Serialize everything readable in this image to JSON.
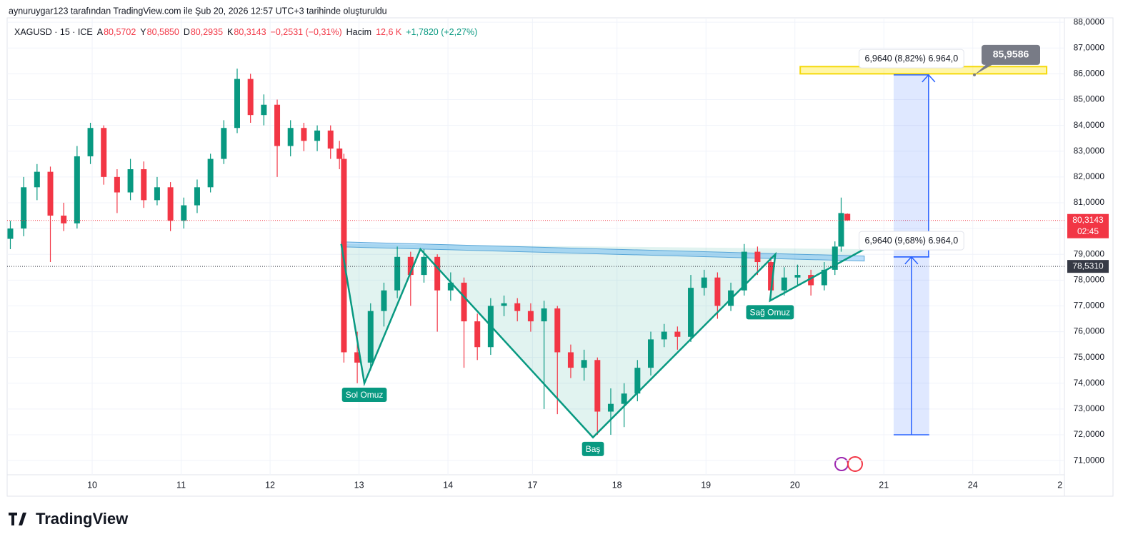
{
  "header": {
    "caption": "aynuruygar123 tarafından TradingView.com ile Şub 20, 2026 12:57 UTC+3 tarihinde oluşturuldu",
    "legend": [
      {
        "text": "XAGUSD · 15 · ICE",
        "color": "#131722"
      },
      {
        "text": "A",
        "color": "#131722"
      },
      {
        "text": "80,5702",
        "color": "#f23645"
      },
      {
        "text": "Y",
        "color": "#131722"
      },
      {
        "text": "80,5850",
        "color": "#f23645"
      },
      {
        "text": "D",
        "color": "#131722"
      },
      {
        "text": "80,2935",
        "color": "#f23645"
      },
      {
        "text": "K",
        "color": "#131722"
      },
      {
        "text": "80,3143",
        "color": "#f23645"
      },
      {
        "text": "−0,2531 (−0,31%)",
        "color": "#f23645"
      },
      {
        "text": "Hacim",
        "color": "#131722"
      },
      {
        "text": "12,6 K",
        "color": "#f23645"
      },
      {
        "text": "+1,7820 (+2,27%)",
        "color": "#089981"
      }
    ]
  },
  "chart_data": {
    "type": "candlestick",
    "up_color": "#089981",
    "down_color": "#f23645",
    "xlim": [
      -0.956,
      10.93
    ],
    "ylim": [
      69.62,
      88.17
    ],
    "xticks": [
      {
        "value": 0,
        "label": "10"
      },
      {
        "value": 1,
        "label": "11"
      },
      {
        "value": 2,
        "label": "12"
      },
      {
        "value": 3,
        "label": "13"
      },
      {
        "value": 4,
        "label": "14"
      },
      {
        "value": 4.95,
        "label": "17"
      },
      {
        "value": 5.9,
        "label": "18"
      },
      {
        "value": 6.9,
        "label": "19"
      },
      {
        "value": 7.9,
        "label": "20"
      },
      {
        "value": 8.9,
        "label": "21"
      },
      {
        "value": 9.9,
        "label": "24"
      },
      {
        "value": 10.88,
        "label": "2"
      }
    ],
    "yticks": [
      {
        "value": 88,
        "label": "88,0000"
      },
      {
        "value": 87,
        "label": "87,0000"
      },
      {
        "value": 86,
        "label": "86,0000"
      },
      {
        "value": 85,
        "label": "85,0000"
      },
      {
        "value": 84,
        "label": "84,0000"
      },
      {
        "value": 83,
        "label": "83,0000"
      },
      {
        "value": 82,
        "label": "82,0000"
      },
      {
        "value": 81,
        "label": "81,0000"
      },
      {
        "value": 80,
        "label": "80,0000"
      },
      {
        "value": 79,
        "label": "79,0000"
      },
      {
        "value": 78,
        "label": "78,0000"
      },
      {
        "value": 77,
        "label": "77,0000"
      },
      {
        "value": 76,
        "label": "76,0000"
      },
      {
        "value": 75,
        "label": "75,0000"
      },
      {
        "value": 74,
        "label": "74,0000"
      },
      {
        "value": 73,
        "label": "73,0000"
      },
      {
        "value": 72,
        "label": "72,0000"
      },
      {
        "value": 71,
        "label": "71,0000"
      }
    ],
    "grid": true,
    "candles": [
      {
        "x": -0.92,
        "open": 79.6,
        "high": 80.3,
        "low": 79.2,
        "close": 80.0
      },
      {
        "x": -0.77,
        "open": 80.0,
        "high": 82.0,
        "low": 79.7,
        "close": 81.6
      },
      {
        "x": -0.62,
        "open": 81.6,
        "high": 82.5,
        "low": 81.1,
        "close": 82.2
      },
      {
        "x": -0.47,
        "open": 82.2,
        "high": 82.4,
        "low": 78.7,
        "close": 80.5
      },
      {
        "x": -0.32,
        "open": 80.5,
        "high": 81.0,
        "low": 79.9,
        "close": 80.2
      },
      {
        "x": -0.17,
        "open": 80.2,
        "high": 83.2,
        "low": 80.0,
        "close": 82.8
      },
      {
        "x": -0.02,
        "open": 82.8,
        "high": 84.1,
        "low": 82.5,
        "close": 83.9
      },
      {
        "x": 0.13,
        "open": 83.9,
        "high": 84.0,
        "low": 81.7,
        "close": 82.0
      },
      {
        "x": 0.28,
        "open": 82.0,
        "high": 82.3,
        "low": 80.6,
        "close": 81.4
      },
      {
        "x": 0.43,
        "open": 81.4,
        "high": 82.7,
        "low": 81.1,
        "close": 82.3
      },
      {
        "x": 0.58,
        "open": 82.3,
        "high": 82.6,
        "low": 80.8,
        "close": 81.1
      },
      {
        "x": 0.73,
        "open": 81.1,
        "high": 82.0,
        "low": 80.9,
        "close": 81.6
      },
      {
        "x": 0.88,
        "open": 81.6,
        "high": 81.8,
        "low": 79.9,
        "close": 80.3
      },
      {
        "x": 1.03,
        "open": 80.3,
        "high": 81.2,
        "low": 80.0,
        "close": 80.9
      },
      {
        "x": 1.18,
        "open": 80.9,
        "high": 81.9,
        "low": 80.6,
        "close": 81.6
      },
      {
        "x": 1.33,
        "open": 81.6,
        "high": 82.9,
        "low": 81.4,
        "close": 82.7
      },
      {
        "x": 1.48,
        "open": 82.7,
        "high": 84.2,
        "low": 82.5,
        "close": 83.9
      },
      {
        "x": 1.63,
        "open": 83.9,
        "high": 86.2,
        "low": 83.7,
        "close": 85.8
      },
      {
        "x": 1.78,
        "open": 85.8,
        "high": 86.0,
        "low": 84.1,
        "close": 84.4
      },
      {
        "x": 1.93,
        "open": 84.4,
        "high": 85.2,
        "low": 84.0,
        "close": 84.8
      },
      {
        "x": 2.08,
        "open": 84.8,
        "high": 85.0,
        "low": 82.0,
        "close": 83.2
      },
      {
        "x": 2.23,
        "open": 83.2,
        "high": 84.2,
        "low": 82.8,
        "close": 83.9
      },
      {
        "x": 2.38,
        "open": 83.9,
        "high": 84.1,
        "low": 83.0,
        "close": 83.4
      },
      {
        "x": 2.53,
        "open": 83.4,
        "high": 84.0,
        "low": 83.0,
        "close": 83.8
      },
      {
        "x": 2.68,
        "open": 83.8,
        "high": 84.0,
        "low": 82.7,
        "close": 83.1
      },
      {
        "x": 2.78,
        "open": 83.1,
        "high": 83.4,
        "low": 82.3,
        "close": 82.7
      },
      {
        "x": 2.83,
        "open": 82.7,
        "high": 82.9,
        "low": 74.8,
        "close": 75.2
      },
      {
        "x": 2.98,
        "open": 75.2,
        "high": 76.0,
        "low": 74.0,
        "close": 74.8
      },
      {
        "x": 3.13,
        "open": 74.8,
        "high": 77.1,
        "low": 74.5,
        "close": 76.8
      },
      {
        "x": 3.28,
        "open": 76.8,
        "high": 77.9,
        "low": 76.2,
        "close": 77.6
      },
      {
        "x": 3.43,
        "open": 77.6,
        "high": 79.3,
        "low": 77.3,
        "close": 78.9
      },
      {
        "x": 3.58,
        "open": 78.9,
        "high": 79.1,
        "low": 77.0,
        "close": 78.2
      },
      {
        "x": 3.73,
        "open": 78.2,
        "high": 79.2,
        "low": 77.9,
        "close": 78.9
      },
      {
        "x": 3.88,
        "open": 78.9,
        "high": 79.0,
        "low": 76.0,
        "close": 77.6
      },
      {
        "x": 4.03,
        "open": 77.6,
        "high": 78.3,
        "low": 77.2,
        "close": 77.9
      },
      {
        "x": 4.18,
        "open": 77.9,
        "high": 78.1,
        "low": 74.6,
        "close": 76.4
      },
      {
        "x": 4.33,
        "open": 76.4,
        "high": 76.7,
        "low": 74.9,
        "close": 75.4
      },
      {
        "x": 4.48,
        "open": 75.4,
        "high": 77.3,
        "low": 75.1,
        "close": 77.0
      },
      {
        "x": 4.63,
        "open": 77.0,
        "high": 77.4,
        "low": 76.6,
        "close": 77.1
      },
      {
        "x": 4.78,
        "open": 77.1,
        "high": 77.3,
        "low": 76.4,
        "close": 76.8
      },
      {
        "x": 4.93,
        "open": 76.8,
        "high": 77.1,
        "low": 76.0,
        "close": 76.4
      },
      {
        "x": 5.08,
        "open": 76.4,
        "high": 77.2,
        "low": 73.0,
        "close": 76.9
      },
      {
        "x": 5.23,
        "open": 76.9,
        "high": 77.0,
        "low": 72.8,
        "close": 75.2
      },
      {
        "x": 5.38,
        "open": 75.2,
        "high": 75.5,
        "low": 74.2,
        "close": 74.6
      },
      {
        "x": 5.53,
        "open": 74.6,
        "high": 75.3,
        "low": 74.1,
        "close": 74.9
      },
      {
        "x": 5.68,
        "open": 74.9,
        "high": 75.0,
        "low": 72.0,
        "close": 72.9
      },
      {
        "x": 5.83,
        "open": 72.9,
        "high": 73.8,
        "low": 72.0,
        "close": 73.2
      },
      {
        "x": 5.98,
        "open": 73.2,
        "high": 74.0,
        "low": 72.3,
        "close": 73.6
      },
      {
        "x": 6.13,
        "open": 73.6,
        "high": 74.9,
        "low": 73.3,
        "close": 74.6
      },
      {
        "x": 6.28,
        "open": 74.6,
        "high": 76.0,
        "low": 74.3,
        "close": 75.7
      },
      {
        "x": 6.43,
        "open": 75.7,
        "high": 76.3,
        "low": 75.4,
        "close": 76.0
      },
      {
        "x": 6.58,
        "open": 76.0,
        "high": 76.2,
        "low": 75.3,
        "close": 75.8
      },
      {
        "x": 6.73,
        "open": 75.8,
        "high": 78.2,
        "low": 75.6,
        "close": 77.7
      },
      {
        "x": 6.88,
        "open": 77.7,
        "high": 78.4,
        "low": 77.4,
        "close": 78.1
      },
      {
        "x": 7.03,
        "open": 78.1,
        "high": 78.3,
        "low": 76.5,
        "close": 77.0
      },
      {
        "x": 7.18,
        "open": 77.0,
        "high": 77.9,
        "low": 76.8,
        "close": 77.6
      },
      {
        "x": 7.33,
        "open": 77.6,
        "high": 79.4,
        "low": 77.4,
        "close": 79.1
      },
      {
        "x": 7.48,
        "open": 79.1,
        "high": 79.3,
        "low": 78.2,
        "close": 78.7
      },
      {
        "x": 7.63,
        "open": 78.7,
        "high": 78.9,
        "low": 77.3,
        "close": 77.6
      },
      {
        "x": 7.78,
        "open": 77.6,
        "high": 78.5,
        "low": 77.4,
        "close": 78.1
      },
      {
        "x": 7.93,
        "open": 78.1,
        "high": 78.6,
        "low": 77.8,
        "close": 78.2
      },
      {
        "x": 8.08,
        "open": 78.2,
        "high": 78.4,
        "low": 77.4,
        "close": 77.8
      },
      {
        "x": 8.23,
        "open": 77.8,
        "high": 78.7,
        "low": 77.6,
        "close": 78.4
      },
      {
        "x": 8.35,
        "open": 78.4,
        "high": 79.5,
        "low": 78.2,
        "close": 79.3
      },
      {
        "x": 8.42,
        "open": 79.3,
        "high": 81.2,
        "low": 79.1,
        "close": 80.6
      },
      {
        "x": 8.49,
        "open": 80.5702,
        "high": 80.585,
        "low": 80.2935,
        "close": 80.3143
      }
    ],
    "price_lines": [
      {
        "value": 80.3143,
        "label": "80,3143",
        "sublabel": "02:45",
        "color": "#f23645"
      },
      {
        "value": 78.531,
        "label": "78,5310",
        "color": "#363a45"
      }
    ],
    "pattern": {
      "x": [
        2.8,
        3.06,
        3.69,
        5.63,
        7.68,
        7.62,
        8.68
      ],
      "y": [
        79.4,
        74.0,
        79.2,
        71.9,
        79.0,
        77.2,
        79.2
      ],
      "neckline": {
        "x": [
          2.8,
          8.68
        ],
        "y": [
          79.4,
          78.85
        ]
      },
      "labels": [
        {
          "text": "Sol Omuz",
          "vertex": 1
        },
        {
          "text": "Baş",
          "vertex": 3
        },
        {
          "text": "Sağ Omuz",
          "vertex": 5
        }
      ]
    },
    "target_zone": {
      "x": [
        7.96,
        10.73
      ],
      "y": [
        86.0,
        86.28
      ]
    },
    "measure": {
      "x": [
        9.01,
        9.41
      ],
      "base": 72.0,
      "mid": 78.9,
      "top": {
        "value": 85.9586,
        "label": "85,9586"
      },
      "labels": [
        "6,9640 (9,68%) 6.964,0",
        "6,9640 (8,82%) 6.964,0"
      ]
    }
  },
  "footer": {
    "brand": "TradingView"
  }
}
